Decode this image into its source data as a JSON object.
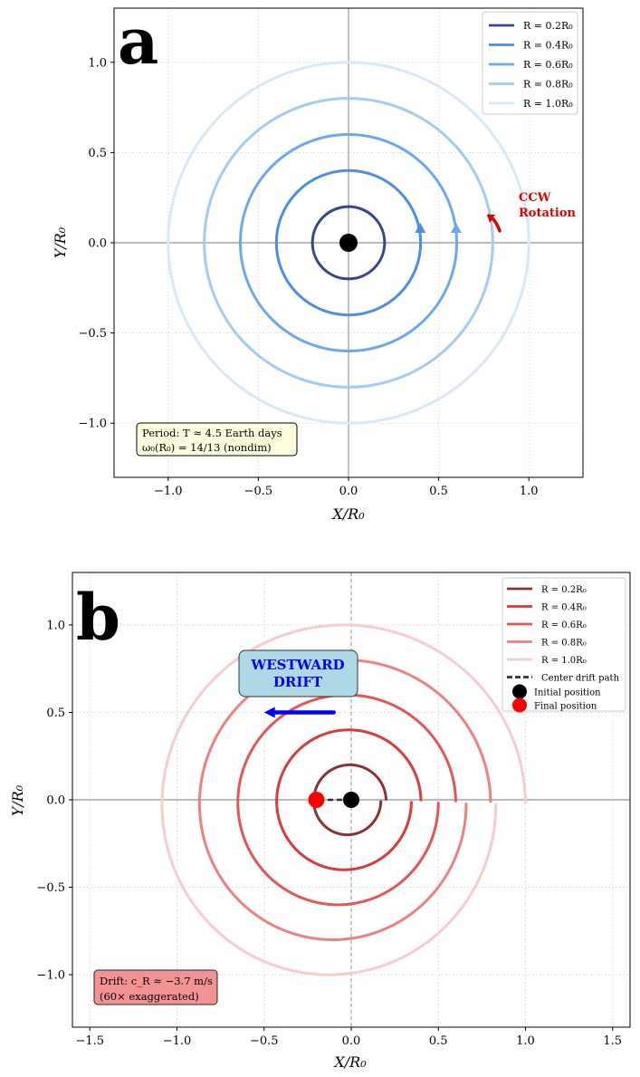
{
  "chart_data": [
    {
      "panel": "a",
      "type": "line",
      "panel_label": "a",
      "xlabel": "X/R₀",
      "ylabel": "Y/R₀",
      "xlim": [
        -1.3,
        1.3
      ],
      "ylim": [
        -1.3,
        1.3
      ],
      "xticks": [
        -1.0,
        -0.5,
        0.0,
        0.5,
        1.0
      ],
      "xtick_labels": [
        "−1.0",
        "−0.5",
        "0.0",
        "0.5",
        "1.0"
      ],
      "yticks": [
        -1.0,
        -0.5,
        0.0,
        0.5,
        1.0
      ],
      "ytick_labels": [
        "−1.0",
        "−0.5",
        "0.0",
        "0.5",
        "1.0"
      ],
      "grid": true,
      "legend_position": "top-right",
      "series": [
        {
          "name": "R = 0.2R₀",
          "radius": 0.2,
          "color": "#33478f",
          "arrow": false
        },
        {
          "name": "R = 0.4R₀",
          "radius": 0.4,
          "color": "#4a8ee6",
          "arrow": true
        },
        {
          "name": "R = 0.6R₀",
          "radius": 0.6,
          "color": "#6aa8f0",
          "arrow": true
        },
        {
          "name": "R = 0.8R₀",
          "radius": 0.8,
          "color": "#a3cbf3",
          "arrow": false
        },
        {
          "name": "R = 1.0R₀",
          "radius": 1.0,
          "color": "#d8e8fb",
          "arrow": false
        }
      ],
      "center_marker": {
        "x": 0.0,
        "y": 0.0,
        "color": "#000000"
      },
      "rotation_annotation": {
        "line1": "CCW",
        "line2": "Rotation",
        "color": "#e00000"
      },
      "info_box": {
        "line1": "Period: T ≈ 4.5 Earth days",
        "line2": "ω₀(R₀) = 14/13 (nondim)",
        "bg": "#ffffe0"
      }
    },
    {
      "panel": "b",
      "type": "line",
      "panel_label": "b",
      "xlabel": "X/R₀",
      "ylabel": "Y/R₀",
      "xlim": [
        -1.6,
        1.6
      ],
      "ylim": [
        -1.3,
        1.3
      ],
      "xticks": [
        -1.5,
        -1.0,
        -0.5,
        0.0,
        0.5,
        1.0,
        1.5
      ],
      "xtick_labels": [
        "−1.5",
        "−1.0",
        "−0.5",
        "0.0",
        "0.5",
        "1.0",
        "1.5"
      ],
      "yticks": [
        -1.0,
        -0.5,
        0.0,
        0.5,
        1.0
      ],
      "ytick_labels": [
        "−1.0",
        "−0.5",
        "0.0",
        "0.5",
        "1.0"
      ],
      "grid": true,
      "legend_position": "top-right",
      "series": [
        {
          "name": "R = 0.2R₀",
          "radius": 0.2,
          "color": "#8b3333",
          "drift": 0.03
        },
        {
          "name": "R = 0.4R₀",
          "radius": 0.4,
          "color": "#d93a3a",
          "drift": 0.055
        },
        {
          "name": "R = 0.6R₀",
          "radius": 0.6,
          "color": "#e65555",
          "drift": 0.1
        },
        {
          "name": "R = 0.8R₀",
          "radius": 0.8,
          "color": "#ef8080",
          "drift": 0.14
        },
        {
          "name": "R = 1.0R₀",
          "radius": 1.0,
          "color": "#f8cccc",
          "drift": 0.17
        }
      ],
      "center_drift_path": {
        "name": "Center drift path",
        "from": [
          0.0,
          0.0
        ],
        "to": [
          -0.2,
          0.0
        ],
        "color": "#333333"
      },
      "initial_position": {
        "name": "Initial position",
        "x": 0.0,
        "y": 0.0,
        "color": "#000000"
      },
      "final_position": {
        "name": "Final position",
        "x": -0.2,
        "y": 0.0,
        "color": "#ff0000"
      },
      "drift_label": {
        "line1": "WESTWARD",
        "line2": "DRIFT",
        "color": "#0000ff",
        "bg": "#add8e6"
      },
      "drift_arrow": {
        "from": [
          -0.1,
          0.5
        ],
        "to": [
          -0.5,
          0.5
        ],
        "color": "#0000ff"
      },
      "info_box": {
        "line1": "Drift: c_R ≈ −3.7 m/s",
        "line2": "(60× exaggerated)",
        "bg": "#f08080"
      }
    }
  ]
}
